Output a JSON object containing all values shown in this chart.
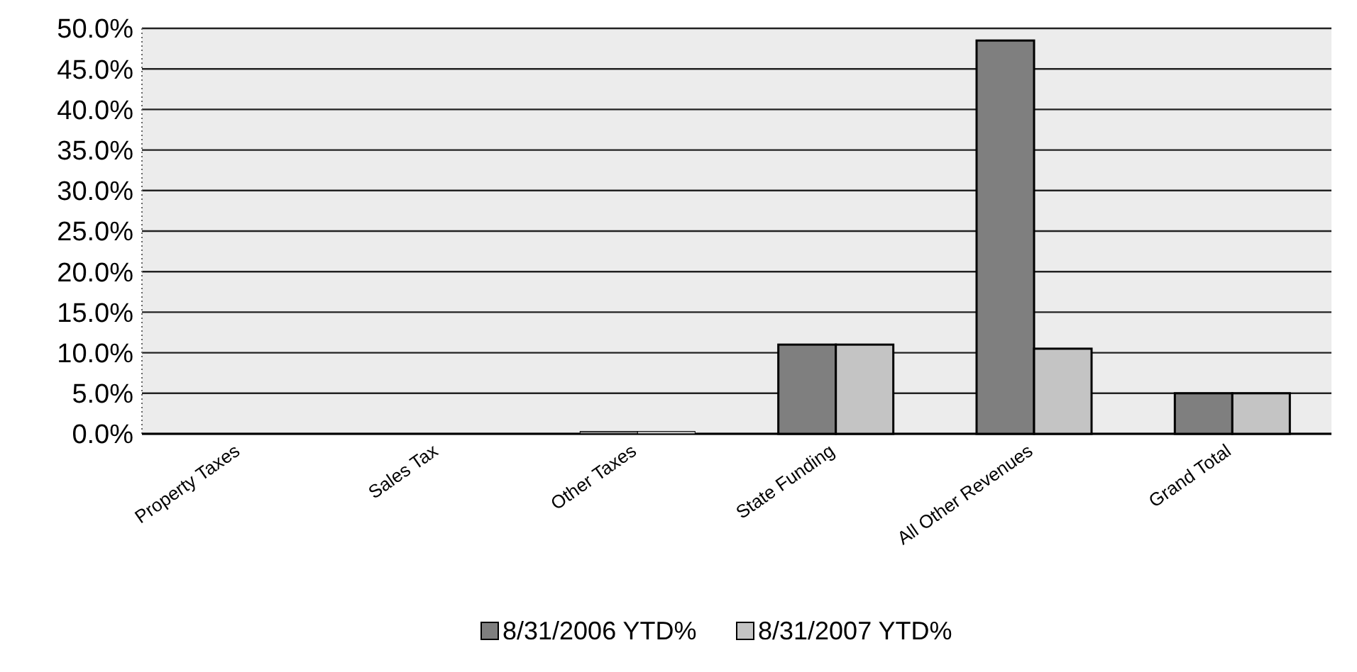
{
  "chart_data": {
    "type": "bar",
    "categories": [
      "Property Taxes",
      "Sales Tax",
      "Other Taxes",
      "State Funding",
      "All Other Revenues",
      "Grand Total"
    ],
    "series": [
      {
        "name": "8/31/2006 YTD%",
        "color": "#7f7f7f",
        "values": [
          0,
          0,
          0.3,
          11.0,
          48.5,
          5.0
        ]
      },
      {
        "name": "8/31/2007 YTD%",
        "color": "#c4c4c4",
        "values": [
          0,
          0,
          0.3,
          11.0,
          10.5,
          5.0
        ]
      }
    ],
    "ylim": [
      0,
      50
    ],
    "yticks": [
      {
        "value": 0,
        "label": "0.0%"
      },
      {
        "value": 5,
        "label": "5.0%"
      },
      {
        "value": 10,
        "label": "10.0%"
      },
      {
        "value": 15,
        "label": "15.0%"
      },
      {
        "value": 20,
        "label": "20.0%"
      },
      {
        "value": 25,
        "label": "25.0%"
      },
      {
        "value": 30,
        "label": "30.0%"
      },
      {
        "value": 35,
        "label": "35.0%"
      },
      {
        "value": 40,
        "label": "40.0%"
      },
      {
        "value": 45,
        "label": "45.0%"
      },
      {
        "value": 50,
        "label": "50.0%"
      }
    ],
    "grid": "y",
    "legend": "bottom"
  }
}
